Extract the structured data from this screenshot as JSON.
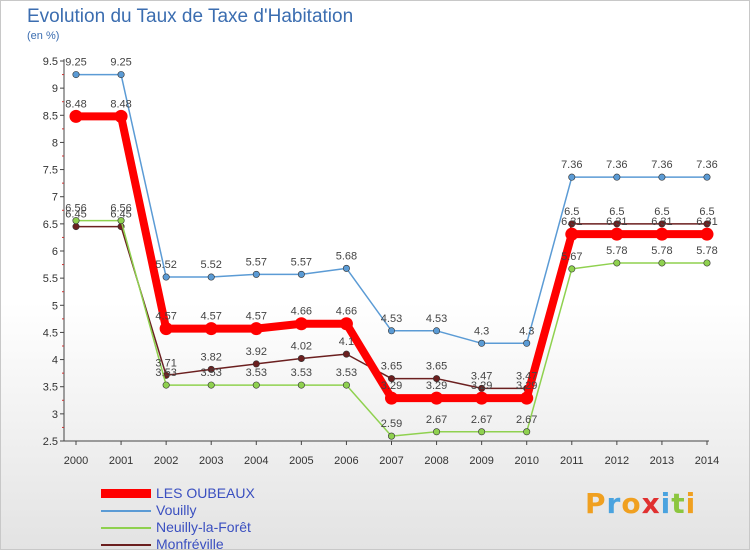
{
  "header": {
    "title": "Evolution du Taux de Taxe d'Habitation",
    "unit": "(en %)"
  },
  "logo": {
    "text": "Proxiti"
  },
  "chart_data": {
    "type": "line",
    "title": "Evolution du Taux de Taxe d'Habitation",
    "ylabel": "(en %)",
    "xlabel": "",
    "ylim": [
      2.5,
      9.5
    ],
    "grid": false,
    "legend_position": "bottom-left",
    "x": [
      "2000",
      "2001",
      "2002",
      "2003",
      "2004",
      "2005",
      "2006",
      "2007",
      "2008",
      "2009",
      "2010",
      "2011",
      "2012",
      "2013",
      "2014"
    ],
    "yticks": [
      "2.5",
      "3",
      "3.5",
      "4",
      "4.5",
      "5",
      "5.5",
      "6",
      "6.5",
      "7",
      "7.5",
      "8",
      "8.5",
      "9",
      "9.5"
    ],
    "series": [
      {
        "name": "LES OUBEAUX",
        "color": "#ff0000",
        "values": [
          8.48,
          8.48,
          4.57,
          4.57,
          4.57,
          4.66,
          4.66,
          3.29,
          3.29,
          3.29,
          3.29,
          6.31,
          6.31,
          6.31,
          6.31
        ],
        "labels": [
          "8.48",
          "8.48",
          "4.57",
          "4.57",
          "4.57",
          "4.66",
          "4.66",
          "3.29",
          "3.29",
          "3.29",
          "3.29",
          "6.31",
          "6.31",
          "6.31",
          "6.31"
        ]
      },
      {
        "name": "Vouilly",
        "color": "#5b9bd5",
        "values": [
          9.25,
          9.25,
          5.52,
          5.52,
          5.57,
          5.57,
          5.68,
          4.53,
          4.53,
          4.3,
          4.3,
          7.36,
          7.36,
          7.36,
          7.36
        ],
        "labels": [
          "9.25",
          "9.25",
          "5.52",
          "5.52",
          "5.57",
          "5.57",
          "5.68",
          "4.53",
          "4.53",
          "4.3",
          "4.3",
          "7.36",
          "7.36",
          "7.36",
          "7.36"
        ]
      },
      {
        "name": "Neuilly-la-Forêt",
        "color": "#8fd14f",
        "values": [
          6.56,
          6.56,
          3.53,
          3.53,
          3.53,
          3.53,
          3.53,
          2.59,
          2.67,
          2.67,
          2.67,
          5.67,
          5.78,
          5.78,
          5.78
        ],
        "labels": [
          "6.56",
          "6.56",
          "3.53",
          "3.53",
          "3.53",
          "3.53",
          "3.53",
          "2.59",
          "2.67",
          "2.67",
          "2.67",
          "5.67",
          "5.78",
          "5.78",
          "5.78"
        ]
      },
      {
        "name": "Monfréville",
        "color": "#6b1f1f",
        "values": [
          6.45,
          6.45,
          3.71,
          3.82,
          3.92,
          4.02,
          4.1,
          3.65,
          3.65,
          3.47,
          3.47,
          6.5,
          6.5,
          6.5,
          6.5
        ],
        "labels": [
          "6.45",
          "6.45",
          "3.71",
          "3.82",
          "3.92",
          "4.02",
          "4.1",
          "3.65",
          "3.65",
          "3.47",
          "3.47",
          "6.5",
          "6.5",
          "6.5",
          "6.5"
        ]
      }
    ]
  }
}
